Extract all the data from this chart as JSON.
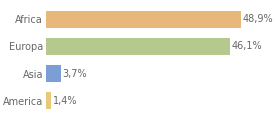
{
  "categories": [
    "America",
    "Asia",
    "Europa",
    "Africa"
  ],
  "values": [
    1.4,
    3.7,
    46.1,
    48.9
  ],
  "bar_colors": [
    "#e8c97a",
    "#7b9fd4",
    "#b5c98e",
    "#e8b87a"
  ],
  "labels": [
    "1,4%",
    "3,7%",
    "46,1%",
    "48,9%"
  ],
  "xlim": [
    0,
    58
  ],
  "background_color": "#ffffff",
  "bar_height": 0.65,
  "label_fontsize": 7.0,
  "tick_fontsize": 7.0,
  "tick_color": "#666666"
}
